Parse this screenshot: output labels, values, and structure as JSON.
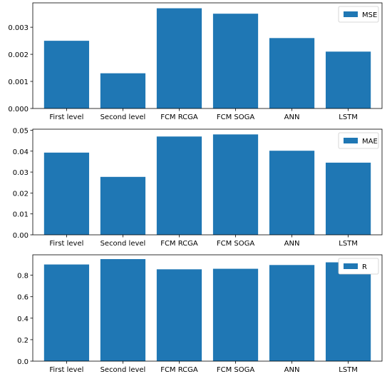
{
  "colors": {
    "bar": "#1f77b4",
    "axis": "#000000",
    "background": "#ffffff",
    "legend_border": "#cccccc"
  },
  "chart_data": [
    {
      "type": "bar",
      "title": "",
      "xlabel": "",
      "ylabel": "",
      "categories": [
        "First level",
        "Second level",
        "FCM RCGA",
        "FCM SOGA",
        "ANN",
        "LSTM"
      ],
      "series": [
        {
          "name": "MSE",
          "values": [
            0.0025,
            0.0013,
            0.0037,
            0.0035,
            0.0026,
            0.0021
          ]
        }
      ],
      "ylim": [
        0,
        0.0039
      ],
      "yticks": [
        0.0,
        0.001,
        0.002,
        0.003
      ],
      "ytick_labels": [
        "0.000",
        "0.001",
        "0.002",
        "0.003"
      ],
      "grid": false,
      "legend": "top-right"
    },
    {
      "type": "bar",
      "title": "",
      "xlabel": "",
      "ylabel": "",
      "categories": [
        "First level",
        "Second level",
        "FCM RCGA",
        "FCM SOGA",
        "ANN",
        "LSTM"
      ],
      "series": [
        {
          "name": "MAE",
          "values": [
            0.0393,
            0.0277,
            0.047,
            0.048,
            0.0402,
            0.0345
          ]
        }
      ],
      "ylim": [
        0,
        0.0505
      ],
      "yticks": [
        0.0,
        0.01,
        0.02,
        0.03,
        0.04,
        0.05
      ],
      "ytick_labels": [
        "0.00",
        "0.01",
        "0.02",
        "0.03",
        "0.04",
        "0.05"
      ],
      "grid": false,
      "legend": "top-right"
    },
    {
      "type": "bar",
      "title": "",
      "xlabel": "",
      "ylabel": "",
      "categories": [
        "First level",
        "Second level",
        "FCM RCGA",
        "FCM SOGA",
        "ANN",
        "LSTM"
      ],
      "series": [
        {
          "name": "R",
          "values": [
            0.9,
            0.95,
            0.855,
            0.86,
            0.895,
            0.92
          ]
        }
      ],
      "ylim": [
        0,
        0.99
      ],
      "yticks": [
        0.0,
        0.2,
        0.4,
        0.6,
        0.8
      ],
      "ytick_labels": [
        "0.0",
        "0.2",
        "0.4",
        "0.6",
        "0.8"
      ],
      "grid": false,
      "legend": "top-right"
    }
  ]
}
